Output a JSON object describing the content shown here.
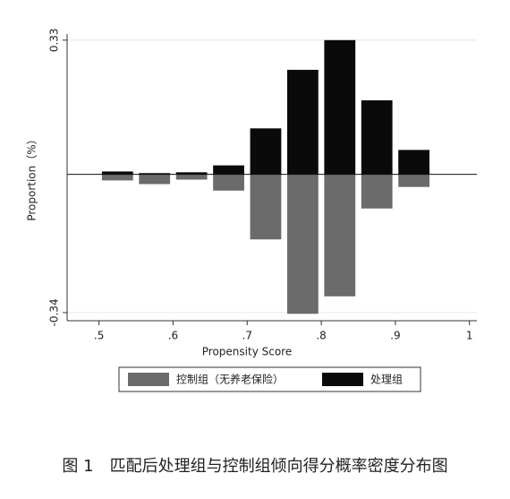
{
  "chart_data": {
    "type": "histogram",
    "caption": "图 1　匹配后处理组与控制组倾向得分概率密度分布图",
    "xlabel": "Propensity Score",
    "ylabel": "Proportion（%）",
    "bins": [
      0.5,
      0.55,
      0.6,
      0.65,
      0.7,
      0.75,
      0.8,
      0.85,
      0.9,
      0.95
    ],
    "series": [
      {
        "name": "控制组（无养老保险）",
        "color": "#6b6b6b",
        "values": [
          -0.015,
          -0.024,
          -0.013,
          -0.04,
          -0.16,
          -0.343,
          -0.3,
          -0.084,
          -0.031
        ]
      },
      {
        "name": "处理组",
        "color": "#0a0a0a",
        "values": [
          0.007,
          0.003,
          0.005,
          0.022,
          0.113,
          0.257,
          0.33,
          0.182,
          0.06
        ]
      }
    ],
    "xlim": [
      0.457,
      1.01
    ],
    "ylim": [
      -0.36,
      0.345
    ],
    "xticks": [
      {
        "value": 0.5,
        "label": ".5"
      },
      {
        "value": 0.6,
        "label": ".6"
      },
      {
        "value": 0.7,
        "label": ".7"
      },
      {
        "value": 0.8,
        "label": ".8"
      },
      {
        "value": 0.9,
        "label": ".9"
      },
      1
    ],
    "yticks": [
      -0.34,
      0.33
    ],
    "grid": true
  }
}
